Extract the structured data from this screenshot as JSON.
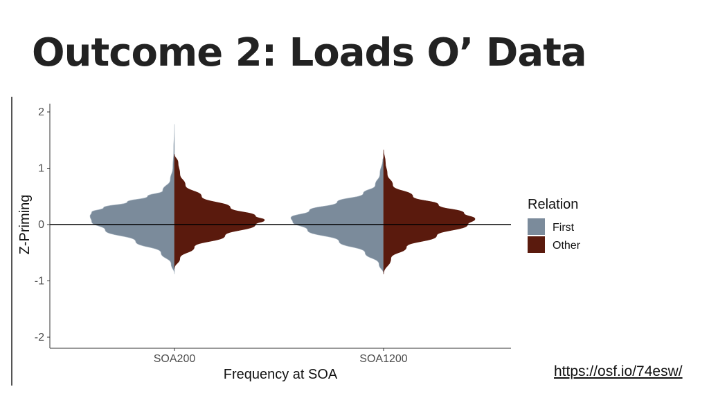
{
  "slide": {
    "title": "Outcome 2: Loads O’ Data",
    "link_text": "https://osf.io/74esw/"
  },
  "chart_data": {
    "type": "violin",
    "title": "",
    "xlabel": "Frequency at SOA",
    "ylabel": "Z-Priming",
    "categories": [
      "SOA200",
      "SOA1200"
    ],
    "ylim": [
      -2,
      2
    ],
    "yticks": [
      2,
      1,
      0,
      -1,
      -2
    ],
    "reference_line_y": 0,
    "grid": false,
    "legend": {
      "title": "Relation",
      "position": "right",
      "entries": [
        "First",
        "Other"
      ]
    },
    "series": [
      {
        "name": "First",
        "side": "left",
        "color": "#7b8b9b",
        "per_category": [
          {
            "category": "SOA200",
            "profile": [
              [
                -0.88,
                0.0
              ],
              [
                -0.7,
                0.04
              ],
              [
                -0.5,
                0.16
              ],
              [
                -0.3,
                0.46
              ],
              [
                -0.1,
                0.82
              ],
              [
                0.05,
                0.98
              ],
              [
                0.15,
                1.0
              ],
              [
                0.22,
                0.98
              ],
              [
                0.3,
                0.84
              ],
              [
                0.4,
                0.56
              ],
              [
                0.5,
                0.32
              ],
              [
                0.6,
                0.14
              ],
              [
                0.8,
                0.05
              ],
              [
                1.0,
                0.02
              ],
              [
                1.3,
                0.01
              ],
              [
                1.78,
                0.0
              ]
            ]
          },
          {
            "category": "SOA1200",
            "profile": [
              [
                -0.88,
                0.0
              ],
              [
                -0.7,
                0.05
              ],
              [
                -0.5,
                0.2
              ],
              [
                -0.3,
                0.48
              ],
              [
                -0.1,
                0.82
              ],
              [
                0.05,
                0.98
              ],
              [
                0.12,
                1.0
              ],
              [
                0.25,
                0.8
              ],
              [
                0.4,
                0.5
              ],
              [
                0.55,
                0.22
              ],
              [
                0.7,
                0.09
              ],
              [
                0.9,
                0.04
              ],
              [
                1.15,
                0.01
              ],
              [
                1.2,
                0.0
              ]
            ]
          }
        ]
      },
      {
        "name": "Other",
        "side": "right",
        "color": "#5a1a0d",
        "per_category": [
          {
            "category": "SOA200",
            "profile": [
              [
                -0.78,
                0.0
              ],
              [
                -0.6,
                0.06
              ],
              [
                -0.4,
                0.22
              ],
              [
                -0.2,
                0.56
              ],
              [
                0.0,
                0.9
              ],
              [
                0.08,
                1.0
              ],
              [
                0.15,
                0.9
              ],
              [
                0.3,
                0.62
              ],
              [
                0.5,
                0.3
              ],
              [
                0.7,
                0.12
              ],
              [
                0.9,
                0.06
              ],
              [
                1.1,
                0.04
              ],
              [
                1.25,
                0.0
              ]
            ]
          },
          {
            "category": "SOA1200",
            "profile": [
              [
                -0.88,
                0.0
              ],
              [
                -0.6,
                0.08
              ],
              [
                -0.4,
                0.25
              ],
              [
                -0.2,
                0.58
              ],
              [
                0.0,
                0.92
              ],
              [
                0.1,
                1.0
              ],
              [
                0.2,
                0.88
              ],
              [
                0.35,
                0.6
              ],
              [
                0.5,
                0.32
              ],
              [
                0.7,
                0.1
              ],
              [
                0.9,
                0.04
              ],
              [
                1.1,
                0.02
              ],
              [
                1.33,
                0.0
              ]
            ]
          }
        ]
      }
    ]
  }
}
